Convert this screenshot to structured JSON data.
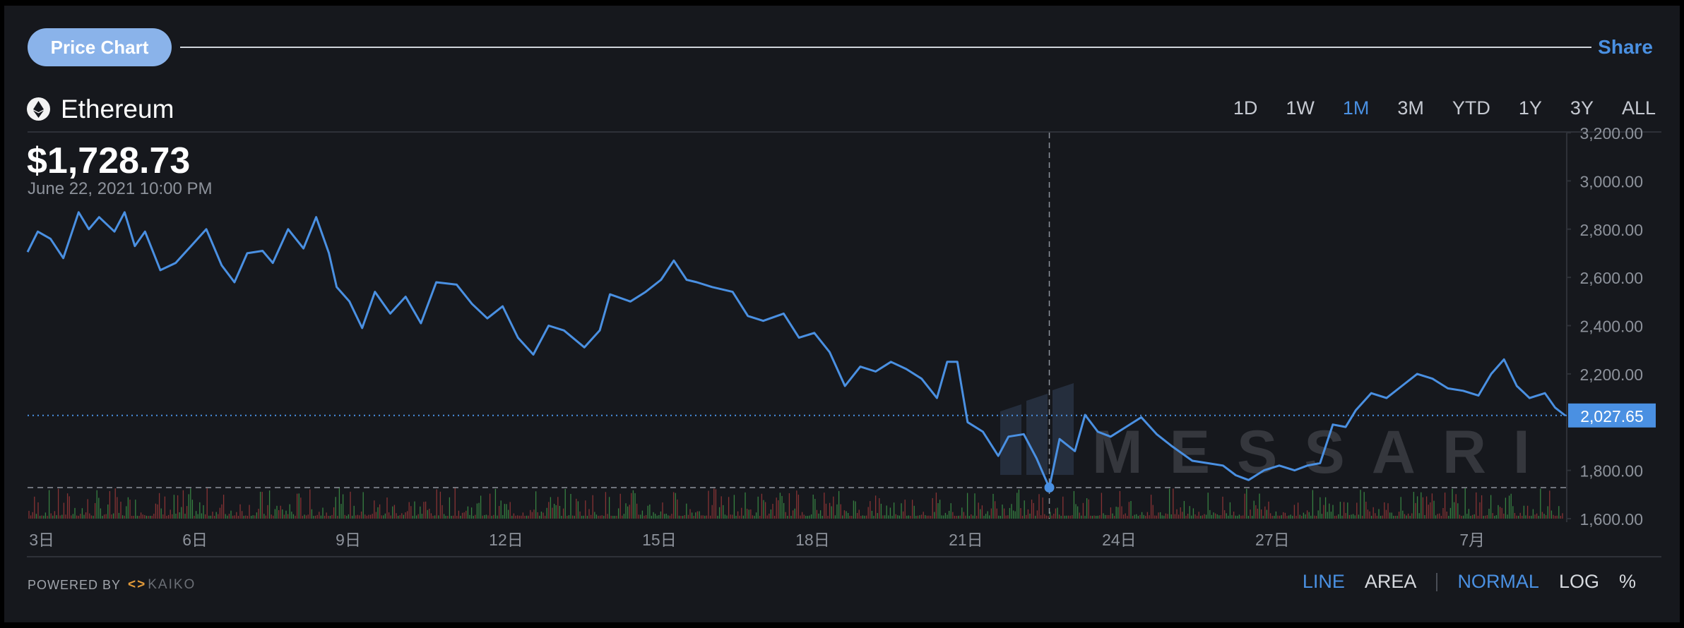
{
  "header": {
    "tab_label": "Price Chart",
    "share_label": "Share"
  },
  "asset": {
    "name": "Ethereum",
    "icon": "ethereum-icon"
  },
  "ranges": [
    {
      "label": "1D",
      "active": false
    },
    {
      "label": "1W",
      "active": false
    },
    {
      "label": "1M",
      "active": true
    },
    {
      "label": "3M",
      "active": false
    },
    {
      "label": "YTD",
      "active": false
    },
    {
      "label": "1Y",
      "active": false
    },
    {
      "label": "3Y",
      "active": false
    },
    {
      "label": "ALL",
      "active": false
    }
  ],
  "tooltip": {
    "price": "$1,728.73",
    "date": "June 22, 2021 10:00 PM"
  },
  "footer": {
    "powered_by": "POWERED BY",
    "provider": "KAIKO",
    "modes": [
      "LINE",
      "AREA",
      "NORMAL",
      "LOG",
      "%"
    ],
    "active_modes": [
      "LINE",
      "NORMAL"
    ]
  },
  "watermark": "MESSARI",
  "colors": {
    "background": "#16181d",
    "accent": "#4a90e2",
    "line": "#4a90e2",
    "volume_up": "#3f9a4b",
    "volume_down": "#a33a3a"
  },
  "chart_data": {
    "type": "line",
    "x_tick_labels": [
      "3日",
      "6日",
      "9日",
      "12日",
      "15日",
      "18日",
      "21日",
      "24日",
      "27日",
      "7月"
    ],
    "y_tick_labels": [
      "3,200.00",
      "3,000.00",
      "2,800.00",
      "2,600.00",
      "2,400.00",
      "2,200.00",
      "1,800.00",
      "1,600.00"
    ],
    "ylim": [
      1600,
      3200
    ],
    "current_price_label": "2,027.65",
    "current_price": 2027.65,
    "hover_price": 1728.73,
    "hover_day": 22.9,
    "series": [
      {
        "values": [
          [
            2.9,
            2705
          ],
          [
            3.1,
            2790
          ],
          [
            3.35,
            2760
          ],
          [
            3.6,
            2680
          ],
          [
            3.9,
            2870
          ],
          [
            4.1,
            2800
          ],
          [
            4.3,
            2850
          ],
          [
            4.6,
            2790
          ],
          [
            4.8,
            2870
          ],
          [
            5.0,
            2730
          ],
          [
            5.2,
            2790
          ],
          [
            5.5,
            2630
          ],
          [
            5.8,
            2660
          ],
          [
            6.1,
            2730
          ],
          [
            6.4,
            2800
          ],
          [
            6.7,
            2650
          ],
          [
            6.95,
            2580
          ],
          [
            7.2,
            2700
          ],
          [
            7.5,
            2710
          ],
          [
            7.7,
            2660
          ],
          [
            8.0,
            2800
          ],
          [
            8.3,
            2720
          ],
          [
            8.55,
            2850
          ],
          [
            8.8,
            2700
          ],
          [
            8.95,
            2560
          ],
          [
            9.2,
            2500
          ],
          [
            9.45,
            2390
          ],
          [
            9.7,
            2540
          ],
          [
            10.0,
            2450
          ],
          [
            10.3,
            2520
          ],
          [
            10.6,
            2410
          ],
          [
            10.9,
            2580
          ],
          [
            11.3,
            2570
          ],
          [
            11.6,
            2490
          ],
          [
            11.9,
            2430
          ],
          [
            12.2,
            2480
          ],
          [
            12.5,
            2350
          ],
          [
            12.8,
            2280
          ],
          [
            13.1,
            2400
          ],
          [
            13.4,
            2380
          ],
          [
            13.8,
            2310
          ],
          [
            14.1,
            2380
          ],
          [
            14.3,
            2530
          ],
          [
            14.7,
            2500
          ],
          [
            15.0,
            2540
          ],
          [
            15.3,
            2590
          ],
          [
            15.55,
            2670
          ],
          [
            15.8,
            2590
          ],
          [
            16.0,
            2580
          ],
          [
            16.3,
            2560
          ],
          [
            16.7,
            2540
          ],
          [
            17.0,
            2440
          ],
          [
            17.3,
            2420
          ],
          [
            17.7,
            2450
          ],
          [
            18.0,
            2350
          ],
          [
            18.3,
            2370
          ],
          [
            18.6,
            2290
          ],
          [
            18.9,
            2150
          ],
          [
            19.2,
            2230
          ],
          [
            19.5,
            2210
          ],
          [
            19.8,
            2250
          ],
          [
            20.1,
            2220
          ],
          [
            20.4,
            2180
          ],
          [
            20.7,
            2100
          ],
          [
            20.9,
            2250
          ],
          [
            21.1,
            2250
          ],
          [
            21.3,
            2000
          ],
          [
            21.6,
            1960
          ],
          [
            21.9,
            1860
          ],
          [
            22.1,
            1940
          ],
          [
            22.4,
            1950
          ],
          [
            22.65,
            1850
          ],
          [
            22.9,
            1728
          ],
          [
            23.1,
            1930
          ],
          [
            23.4,
            1880
          ],
          [
            23.6,
            2030
          ],
          [
            23.85,
            1960
          ],
          [
            24.1,
            1940
          ],
          [
            24.4,
            1980
          ],
          [
            24.7,
            2020
          ],
          [
            25.0,
            1950
          ],
          [
            25.3,
            1900
          ],
          [
            25.7,
            1840
          ],
          [
            26.0,
            1830
          ],
          [
            26.3,
            1820
          ],
          [
            26.55,
            1780
          ],
          [
            26.8,
            1760
          ],
          [
            27.1,
            1800
          ],
          [
            27.4,
            1820
          ],
          [
            27.7,
            1800
          ],
          [
            27.95,
            1820
          ],
          [
            28.2,
            1830
          ],
          [
            28.45,
            1990
          ],
          [
            28.7,
            1980
          ],
          [
            28.9,
            2050
          ],
          [
            29.2,
            2120
          ],
          [
            29.5,
            2100
          ],
          [
            29.8,
            2150
          ],
          [
            30.1,
            2200
          ],
          [
            30.4,
            2180
          ],
          [
            30.7,
            2140
          ],
          [
            31.0,
            2130
          ],
          [
            31.3,
            2110
          ],
          [
            31.55,
            2200
          ],
          [
            31.8,
            2260
          ],
          [
            32.05,
            2150
          ],
          [
            32.3,
            2100
          ],
          [
            32.6,
            2120
          ],
          [
            32.8,
            2060
          ],
          [
            33.0,
            2027
          ]
        ]
      }
    ]
  }
}
